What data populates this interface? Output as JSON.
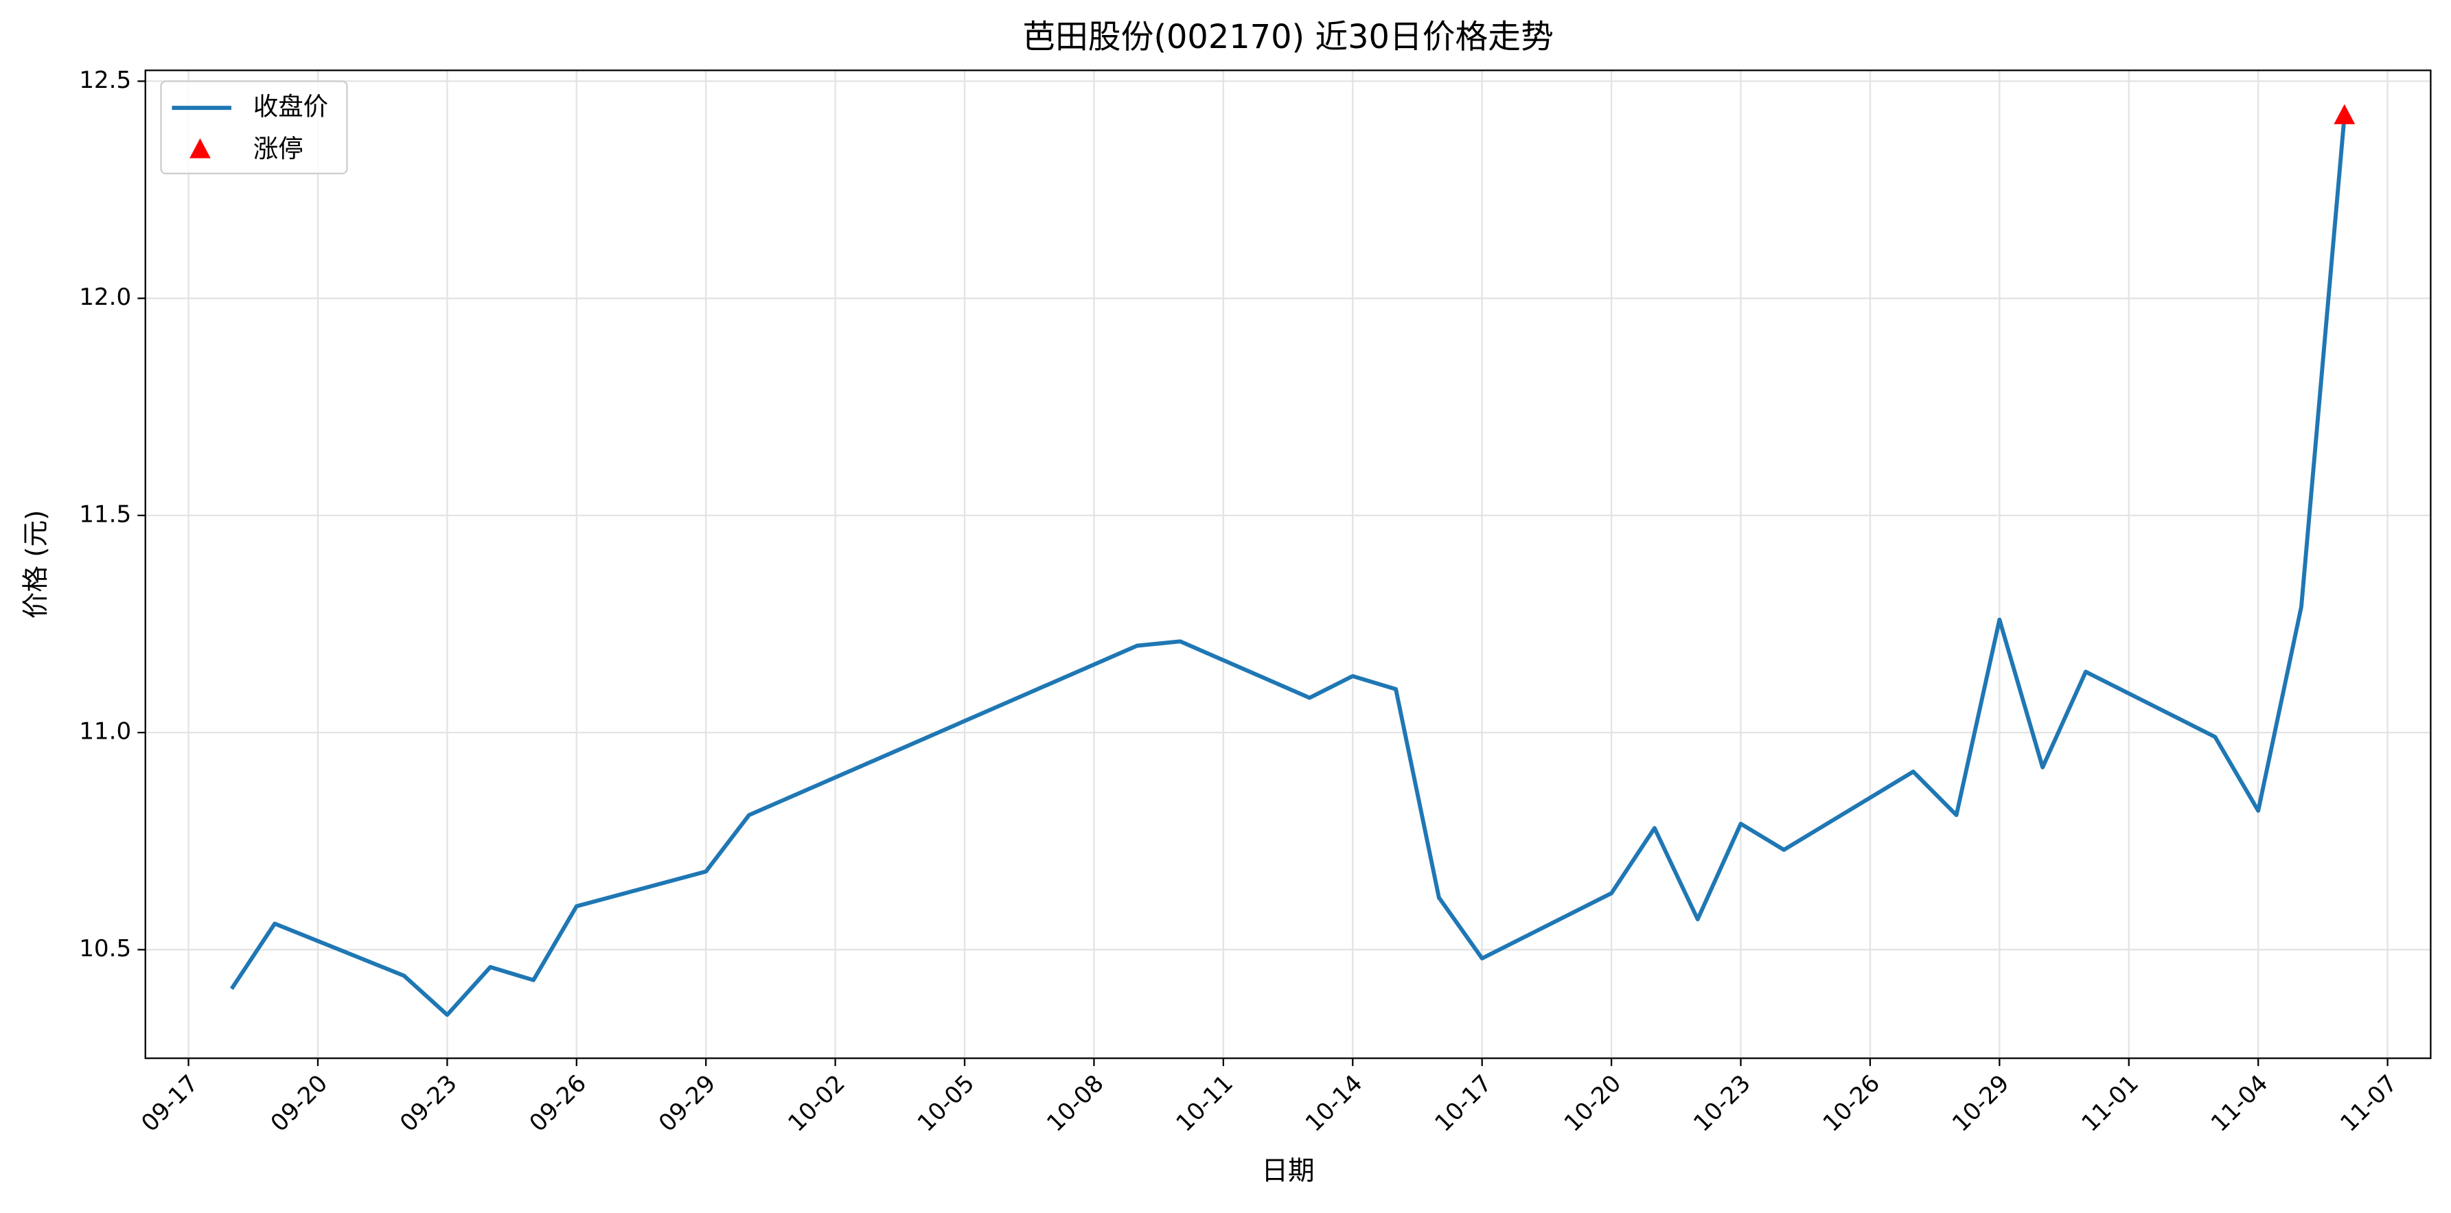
{
  "chart_data": {
    "type": "line",
    "title": "芭田股份(002170) 近30日价格走势",
    "x_label": "日期",
    "y_label": "价格 (元)",
    "x": [
      "09-18",
      "09-19",
      "09-22",
      "09-23",
      "09-24",
      "09-25",
      "09-26",
      "09-29",
      "09-30",
      "10-09",
      "10-10",
      "10-13",
      "10-14",
      "10-15",
      "10-16",
      "10-17",
      "10-20",
      "10-21",
      "10-22",
      "10-23",
      "10-24",
      "10-27",
      "10-28",
      "10-29",
      "10-30",
      "10-31",
      "11-03",
      "11-04",
      "11-05",
      "11-06"
    ],
    "series": [
      {
        "name": "收盘价",
        "type": "line",
        "color": "#1f77b4",
        "values": [
          10.41,
          10.56,
          10.44,
          10.35,
          10.46,
          10.43,
          10.6,
          10.68,
          10.81,
          11.2,
          11.21,
          11.08,
          11.13,
          11.1,
          10.62,
          10.48,
          10.63,
          10.78,
          10.57,
          10.79,
          10.73,
          10.91,
          10.81,
          11.26,
          10.92,
          11.14,
          10.99,
          10.82,
          11.29,
          12.42
        ]
      },
      {
        "name": "涨停",
        "type": "scatter",
        "marker": "triangle",
        "color": "#ff0000",
        "x": [
          "11-06"
        ],
        "values": [
          12.42
        ]
      }
    ],
    "xlim": [
      "09-16",
      "11-08"
    ],
    "xticks": [
      "09-17",
      "09-20",
      "09-23",
      "09-26",
      "09-29",
      "10-02",
      "10-05",
      "10-08",
      "10-11",
      "10-14",
      "10-17",
      "10-20",
      "10-23",
      "10-26",
      "10-29",
      "11-01",
      "11-04",
      "11-07"
    ],
    "ylim": [
      10.25,
      12.525
    ],
    "yticks": [
      10.5,
      {
        "value": 11,
        "label": "11.0"
      },
      11.5,
      {
        "value": 12,
        "label": "12.0"
      },
      12.5
    ],
    "grid": true,
    "legend": "upper left"
  }
}
